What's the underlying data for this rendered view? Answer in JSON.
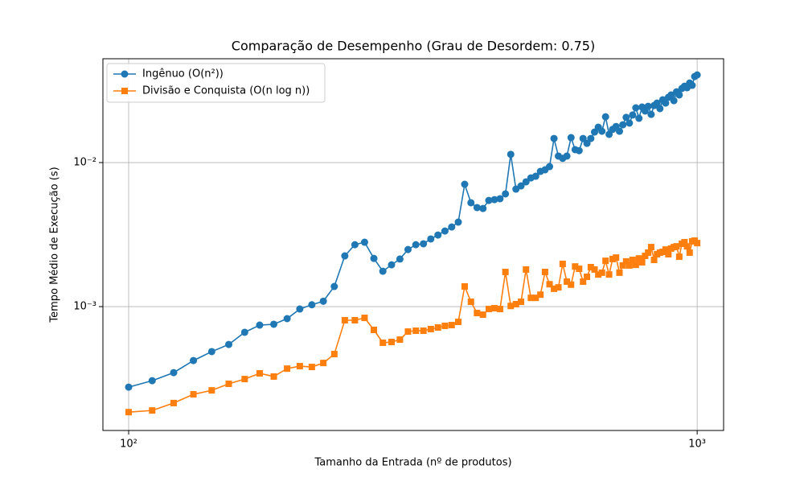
{
  "chart_data": {
    "type": "line",
    "title": "Comparação de Desempenho (Grau de Desordem: 0.75)",
    "xlabel": "Tamanho da Entrada (nº de produtos)",
    "ylabel": "Tempo Médio de Execução (s)",
    "xscale": "log",
    "yscale": "log",
    "grid": true,
    "legend": "upper left",
    "xlim": [
      90.1,
      1113
    ],
    "ylim": [
      0.000138,
      0.0526
    ],
    "xticks": [
      {
        "value": 100,
        "label": "10²"
      },
      {
        "value": 1000,
        "label": "10³"
      }
    ],
    "yticks": [
      {
        "value": 0.001,
        "label": "10⁻³"
      },
      {
        "value": 0.01,
        "label": "10⁻²"
      }
    ],
    "x": [
      100,
      110,
      120,
      130,
      140,
      150,
      160,
      170,
      180,
      190,
      200,
      210,
      220,
      230,
      240,
      250,
      260,
      270,
      280,
      290,
      300,
      310,
      320,
      330,
      340,
      350,
      360,
      370,
      380,
      390,
      400,
      410,
      420,
      430,
      440,
      450,
      460,
      470,
      480,
      490,
      500,
      510,
      520,
      530,
      540,
      550,
      560,
      570,
      580,
      590,
      600,
      610,
      620,
      630,
      640,
      650,
      660,
      670,
      680,
      690,
      700,
      710,
      720,
      730,
      740,
      750,
      760,
      770,
      780,
      790,
      800,
      810,
      820,
      830,
      840,
      850,
      860,
      870,
      880,
      890,
      900,
      910,
      920,
      930,
      940,
      950,
      960,
      970,
      980,
      990,
      1000
    ],
    "series": [
      {
        "name": "Ingênuo (O(n²))",
        "color": "#1f77b4",
        "marker": "circle",
        "values": [
          0.000276,
          0.000306,
          0.000348,
          0.000422,
          0.000487,
          0.000546,
          0.000663,
          0.000744,
          0.000754,
          0.000825,
          0.000962,
          0.00103,
          0.00109,
          0.00138,
          0.00225,
          0.00269,
          0.0028,
          0.00216,
          0.00176,
          0.00195,
          0.00214,
          0.00249,
          0.00269,
          0.00273,
          0.00295,
          0.00314,
          0.00335,
          0.00357,
          0.00386,
          0.00707,
          0.00526,
          0.00487,
          0.0048,
          0.00546,
          0.00553,
          0.00561,
          0.00606,
          0.0114,
          0.00654,
          0.00689,
          0.00735,
          0.00783,
          0.00804,
          0.00868,
          0.00891,
          0.00938,
          0.0147,
          0.0111,
          0.0107,
          0.0111,
          0.0149,
          0.0123,
          0.0121,
          0.0147,
          0.0136,
          0.0147,
          0.0163,
          0.0176,
          0.0165,
          0.0208,
          0.0157,
          0.017,
          0.0178,
          0.0165,
          0.0183,
          0.0206,
          0.0188,
          0.0214,
          0.024,
          0.0203,
          0.0243,
          0.0228,
          0.0246,
          0.0216,
          0.0249,
          0.0259,
          0.0237,
          0.0273,
          0.0259,
          0.0284,
          0.0295,
          0.0269,
          0.031,
          0.0295,
          0.0327,
          0.0339,
          0.0331,
          0.0357,
          0.0344,
          0.0396,
          0.0406
        ]
      },
      {
        "name": "Divisão e Conquista (O(n log n))",
        "color": "#ff7f0e",
        "marker": "square",
        "values": [
          0.000185,
          0.00019,
          0.000214,
          0.000246,
          0.000262,
          0.000291,
          0.000314,
          0.000344,
          0.000327,
          0.000371,
          0.000386,
          0.000381,
          0.000406,
          0.000468,
          0.000804,
          0.000804,
          0.000835,
          0.000689,
          0.000561,
          0.000568,
          0.00059,
          0.000671,
          0.00068,
          0.00068,
          0.000698,
          0.000716,
          0.000735,
          0.000744,
          0.000783,
          0.00138,
          0.00108,
          0.000902,
          0.000879,
          0.000962,
          0.000975,
          0.000962,
          0.00174,
          0.00101,
          0.00104,
          0.00108,
          0.00181,
          0.00115,
          0.00115,
          0.00121,
          0.00174,
          0.00143,
          0.00133,
          0.00136,
          0.00198,
          0.00149,
          0.00142,
          0.0019,
          0.00183,
          0.00149,
          0.00161,
          0.00188,
          0.00181,
          0.00167,
          0.00172,
          0.00208,
          0.00167,
          0.00214,
          0.00219,
          0.00172,
          0.00193,
          0.00206,
          0.00193,
          0.00211,
          0.00195,
          0.00216,
          0.00203,
          0.00225,
          0.00237,
          0.00259,
          0.00211,
          0.00231,
          0.00237,
          0.0024,
          0.00249,
          0.00231,
          0.00253,
          0.00259,
          0.00262,
          0.00222,
          0.00273,
          0.0028,
          0.00262,
          0.00237,
          0.00284,
          0.00287,
          0.00276
        ]
      }
    ]
  }
}
